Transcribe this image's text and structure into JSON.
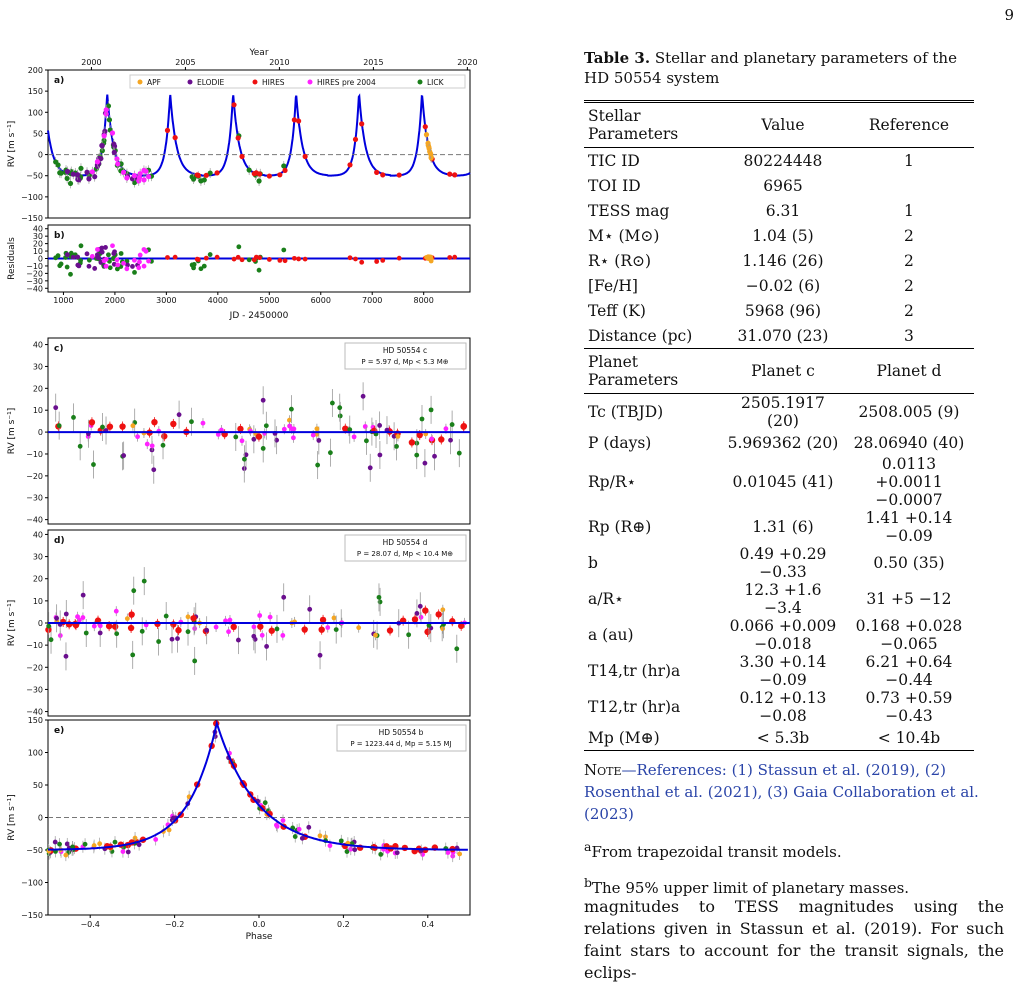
{
  "page_number": "9",
  "table": {
    "caption_label": "Table 3.",
    "caption_text": "Stellar and planetary parameters of the HD 50554 system",
    "stellar_header": [
      "Stellar Parameters",
      "Value",
      "Reference"
    ],
    "stellar_rows": [
      [
        "TIC ID",
        "80224448",
        "1"
      ],
      [
        "TOI ID",
        "6965",
        ""
      ],
      [
        "TESS mag",
        "6.31",
        "1"
      ],
      [
        "M⋆ (M⊙)",
        "1.04 (5)",
        "2"
      ],
      [
        "R⋆ (R⊙)",
        "1.146 (26)",
        "2"
      ],
      [
        "[Fe/H]",
        "−0.02 (6)",
        "2"
      ],
      [
        "Teff (K)",
        "5968 (96)",
        "2"
      ],
      [
        "Distance (pc)",
        "31.070 (23)",
        "3"
      ]
    ],
    "planet_header": [
      "Planet Parameters",
      "Planet c",
      "Planet d"
    ],
    "planet_rows": [
      [
        "Tc (TBJD)",
        "2505.1917 (20)",
        "2508.005 (9)"
      ],
      [
        "P (days)",
        "5.969362 (20)",
        "28.06940 (40)"
      ],
      [
        "Rp/R⋆",
        "0.01045 (41)",
        "0.0113 +0.0011 −0.0007"
      ],
      [
        "Rp (R⊕)",
        "1.31 (6)",
        "1.41 +0.14 −0.09"
      ],
      [
        "b",
        "0.49 +0.29 −0.33",
        "0.50 (35)"
      ],
      [
        "a/R⋆",
        "12.3 +1.6 −3.4",
        "31 +5 −12"
      ],
      [
        "a (au)",
        "0.066 +0.009 −0.018",
        "0.168 +0.028 −0.065"
      ],
      [
        "T14,tr (hr)a",
        "3.30 +0.14 −0.09",
        "6.21 +0.64 −0.44"
      ],
      [
        "T12,tr (hr)a",
        "0.12 +0.13 −0.08",
        "0.73 +0.59 −0.43"
      ],
      [
        "Mp (M⊕)",
        "< 5.3b",
        "< 10.4b"
      ]
    ],
    "note_label": "Note",
    "note_text": "—References: (1) Stassun et al. (2019), (2) Rosenthal et al. (2021), (3) Gaia Collaboration et al. (2023)",
    "footnote_a": "From trapezoidal transit models.",
    "footnote_b": "The 95% upper limit of planetary masses."
  },
  "body_text": "magnitudes to TESS magnitudes using the relations given in Stassun et al. (2019). For such faint stars to account for the transit signals, the eclips-",
  "figure": {
    "top_axis_label": "Year",
    "panel_ab_xlabel": "JD - 2450000",
    "phase_xlabel": "Phase",
    "rv_ylabel": "RV [m s⁻¹]",
    "resid_ylabel": "Residuals",
    "legend": [
      "APF",
      "ELODIE",
      "HIRES",
      "HIRES pre 2004",
      "LICK"
    ],
    "panel_letters": [
      "a)",
      "b)",
      "c)",
      "d)",
      "e)"
    ],
    "panel_c_box": [
      "HD 50554 c",
      "P = 5.97 d, Mp < 5.3 M⊕"
    ],
    "panel_d_box": [
      "HD 50554 d",
      "P = 28.07 d, Mp < 10.4 M⊕"
    ],
    "panel_e_box": [
      "HD 50554 b",
      "P = 1223.44 d, Mp = 5.15 MJ"
    ]
  },
  "colors": {
    "APF": "#f5a623",
    "ELODIE": "#6a0f8e",
    "HIRES": "#ee1111",
    "HIRES_pre2004": "#ff22ff",
    "LICK": "#1a7f1a",
    "model": "#0000dd"
  },
  "chart_data": [
    {
      "type": "scatter",
      "title": "a)",
      "xlabel": "JD - 2450000",
      "ylabel": "RV [m s⁻¹]",
      "top_xlabel": "Year",
      "top_ticks": [
        "2000",
        "2005",
        "2010",
        "2015",
        "2020"
      ],
      "xlim": [
        700,
        8900
      ],
      "ylim": [
        -150,
        200
      ],
      "xticks": [
        1000,
        2000,
        3000,
        4000,
        5000,
        6000,
        7000,
        8000
      ],
      "yticks": [
        -150,
        -100,
        -50,
        0,
        50,
        100,
        150,
        200
      ],
      "model": {
        "period": 1223.44,
        "peak_jd": 1850,
        "max": 145,
        "min": -50
      },
      "series_names": [
        "APF",
        "ELODIE",
        "HIRES",
        "HIRES pre 2004",
        "LICK"
      ]
    },
    {
      "type": "scatter",
      "title": "b)",
      "ylabel": "Residuals",
      "xlim": [
        700,
        8900
      ],
      "ylim": [
        -45,
        45
      ],
      "yticks": [
        -40,
        -30,
        -20,
        -10,
        0,
        10,
        20,
        30,
        40
      ]
    },
    {
      "type": "scatter",
      "title": "c)",
      "ylabel": "RV [m s⁻¹]",
      "ylim": [
        -42,
        43
      ],
      "yticks": [
        -40,
        -30,
        -20,
        -10,
        0,
        10,
        20,
        30,
        40
      ],
      "xlim": [
        -0.5,
        0.5
      ]
    },
    {
      "type": "scatter",
      "title": "d)",
      "ylabel": "RV [m s⁻¹]",
      "ylim": [
        -42,
        42
      ],
      "yticks": [
        -40,
        -30,
        -20,
        -10,
        0,
        10,
        20,
        30,
        40
      ],
      "xlim": [
        -0.5,
        0.5
      ]
    },
    {
      "type": "scatter",
      "title": "e)",
      "xlabel": "Phase",
      "ylabel": "RV [m s⁻¹]",
      "xlim": [
        -0.5,
        0.5
      ],
      "ylim": [
        -150,
        150
      ],
      "xticks": [
        -0.4,
        -0.2,
        0.0,
        0.2,
        0.4
      ],
      "yticks": [
        -150,
        -100,
        -50,
        0,
        50,
        100,
        150
      ],
      "model": {
        "peak_phase": -0.1,
        "max": 145,
        "min": -50
      }
    }
  ]
}
